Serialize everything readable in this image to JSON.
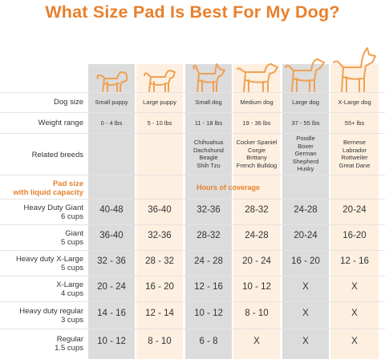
{
  "title": "What Size Pad Is Best For My Dog?",
  "colors": {
    "accent": "#e8802c",
    "gray_column": "#dcdcdc",
    "cream_column": "#fdf0e1",
    "dog_outline": "#f0a050"
  },
  "row_labels": {
    "dog_size": "Dog size",
    "weight_range": "Weight range",
    "related_breeds": "Related breeds",
    "pad_size": "Pad size",
    "pad_size_sub": "with liquid capacity",
    "hours_of_coverage": "Hours of coverage"
  },
  "columns": [
    {
      "size": "Small puppy",
      "weight": "0 - 4 lbs",
      "breeds": []
    },
    {
      "size": "Large puppy",
      "weight": "5 - 10 lbs",
      "breeds": []
    },
    {
      "size": "Small dog",
      "weight": "11 - 18 lbs",
      "breeds": [
        "Chihuahua",
        "Dachshund",
        "Beagle",
        "Shih Tzu"
      ]
    },
    {
      "size": "Medium dog",
      "weight": "19 - 36 lbs",
      "breeds": [
        "Cocker Spaniel",
        "Corgie",
        "Brittany",
        "French Bulldog"
      ]
    },
    {
      "size": "Large dog",
      "weight": "37 - 55 lbs",
      "breeds": [
        "Poodle",
        "Boxer",
        "German",
        "Shepherd",
        "Husky"
      ]
    },
    {
      "size": "X-Large dog",
      "weight": "55+ lbs",
      "breeds": [
        "Bernese",
        "Labrador",
        "Rottweiler",
        "Great Dane"
      ]
    }
  ],
  "pads": [
    {
      "name": "Heavy Duty Giant",
      "capacity": "6 cups",
      "hours": [
        "40-48",
        "36-40",
        "32-36",
        "28-32",
        "24-28",
        "20-24"
      ]
    },
    {
      "name": "Giant",
      "capacity": "5 cups",
      "hours": [
        "36-40",
        "32-36",
        "28-32",
        "24-28",
        "20-24",
        "16-20"
      ]
    },
    {
      "name": "Heavy duty X-Large",
      "capacity": "5 cups",
      "hours": [
        "32 - 36",
        "28 - 32",
        "24 - 28",
        "20 - 24",
        "16 - 20",
        "12 - 16"
      ]
    },
    {
      "name": "X-Large",
      "capacity": "4 cups",
      "hours": [
        "20 - 24",
        "16 - 20",
        "12 - 16",
        "10 - 12",
        "X",
        "X"
      ]
    },
    {
      "name": "Heavy duty regular",
      "capacity": "3 cups",
      "hours": [
        "14 - 16",
        "12 - 14",
        "10 - 12",
        "8 - 10",
        "X",
        "X"
      ]
    },
    {
      "name": "Regular",
      "capacity": "1.5 cups",
      "hours": [
        "10 - 12",
        "8 - 10",
        "6 - 8",
        "X",
        "X",
        "X"
      ]
    }
  ]
}
